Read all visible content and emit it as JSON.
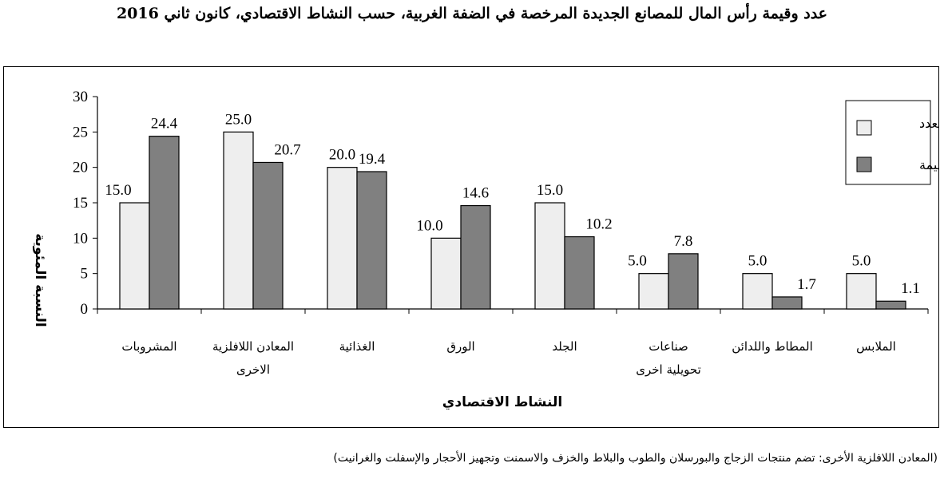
{
  "title": "عدد وقيمة رأس المال للمصانع الجديدة المرخصة في الضفة الغربية، حسب النشاط الاقتصادي، كانون ثاني  2016",
  "footnote": "(المعادن اللافلزية الأخرى: تضم منتجات الزجاج والبورسلان والطوب والبلاط والخزف والاسمنت وتجهيز الأحجار والإسفلت والغرانيت)",
  "colors": {
    "count": "#eeeeee",
    "value": "#808080",
    "stroke": "#000000"
  },
  "chart_data": {
    "type": "bar",
    "categories": [
      [
        "المشروبات"
      ],
      [
        "المعادن اللافلزية",
        "الاخرى"
      ],
      [
        "الغذائية"
      ],
      [
        "الورق"
      ],
      [
        "الجلد"
      ],
      [
        "صناعات",
        "تحويلية اخرى"
      ],
      [
        "المطاط واللدائن"
      ],
      [
        "الملابس"
      ]
    ],
    "series": [
      {
        "name": "العدد",
        "values": [
          15.0,
          25.0,
          20.0,
          10.0,
          15.0,
          5.0,
          5.0,
          5.0
        ]
      },
      {
        "name": "القيمة",
        "values": [
          24.4,
          20.7,
          19.4,
          14.6,
          10.2,
          7.8,
          1.7,
          1.1
        ]
      }
    ],
    "data_labels": [
      [
        "15.0",
        "25.0",
        "20.0",
        "10.0",
        "15.0",
        "5.0",
        "5.0",
        "5.0"
      ],
      [
        "24.4",
        "20.7",
        "19.4",
        "14.6",
        "10.2",
        "7.8",
        "1.7",
        "1.1"
      ]
    ],
    "ylabel": "النسبة المئوية",
    "xlabel": "النشاط الاقتصادي",
    "ylim": [
      0,
      30
    ],
    "yticks": [
      0,
      5,
      10,
      15,
      20,
      25,
      30
    ],
    "grid": false,
    "legend_position": "top-right"
  }
}
